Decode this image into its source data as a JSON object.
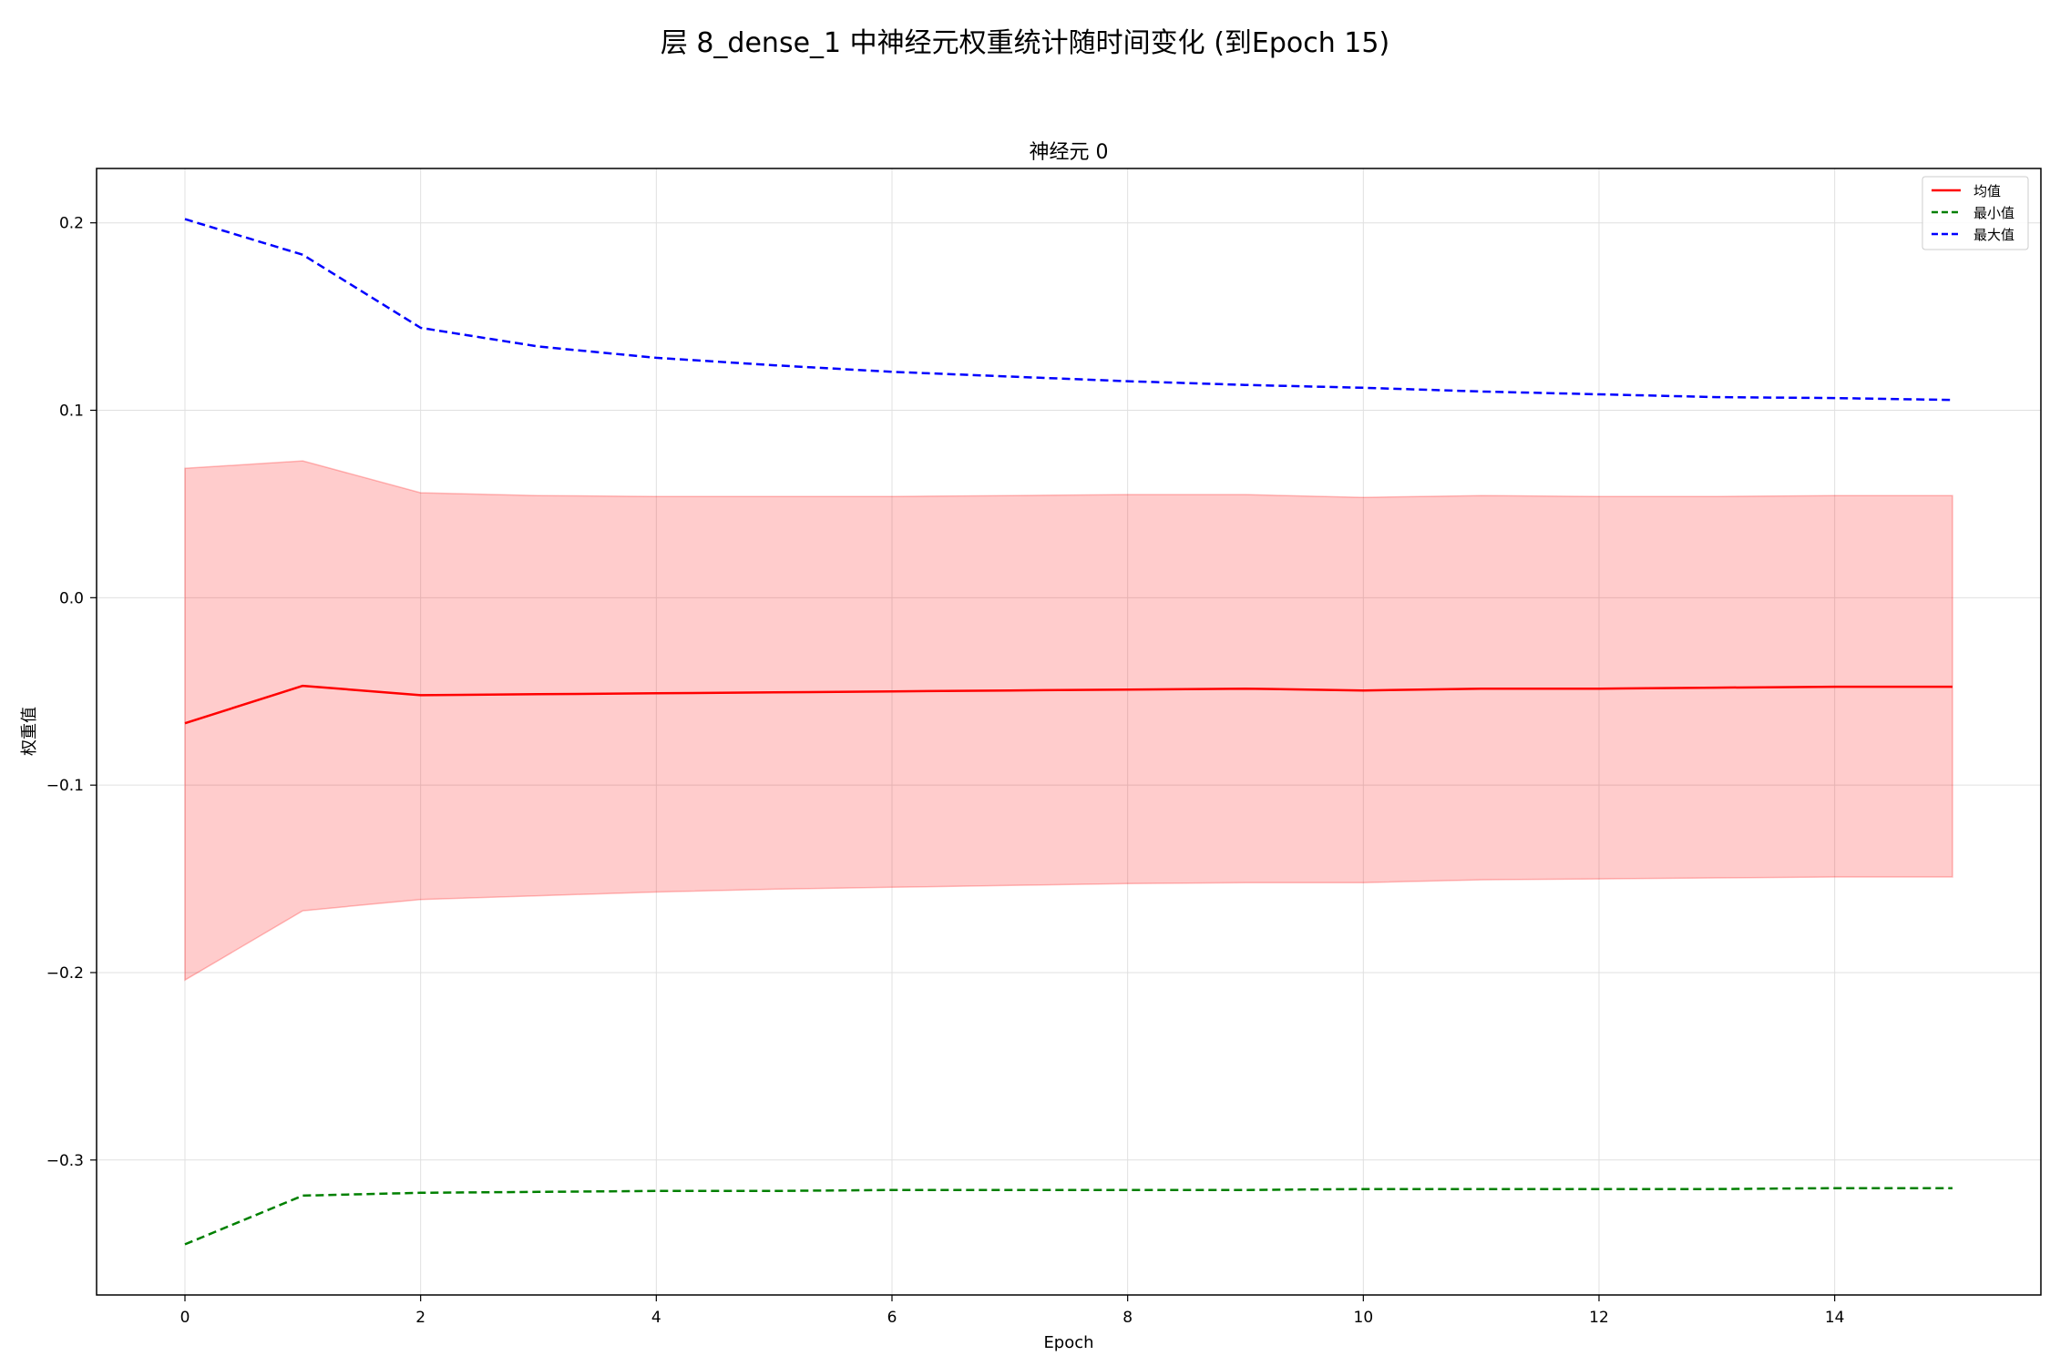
{
  "chart_data": {
    "type": "line",
    "title": "层 8_dense_1 中神经元权重统计随时间变化 (到Epoch 15)",
    "subtitle": "神经元 0",
    "xlabel": "Epoch",
    "ylabel": "权重值",
    "xlim": [
      -0.75,
      15.75
    ],
    "ylim": [
      -0.372,
      0.229
    ],
    "x_ticks": [
      0,
      2,
      4,
      6,
      8,
      10,
      12,
      14
    ],
    "y_ticks": [
      0.2,
      0.1,
      0.0,
      -0.1,
      -0.2,
      -0.3
    ],
    "grid": true,
    "legend_position": "top-right",
    "x": [
      0,
      1,
      2,
      3,
      4,
      5,
      6,
      7,
      8,
      9,
      10,
      11,
      12,
      13,
      14,
      15
    ],
    "series": [
      {
        "name": "均值",
        "color": "#ff0000",
        "style": "solid",
        "values": [
          -0.067,
          -0.047,
          -0.052,
          -0.0515,
          -0.051,
          -0.0505,
          -0.05,
          -0.0495,
          -0.049,
          -0.0485,
          -0.0495,
          -0.0485,
          -0.0485,
          -0.048,
          -0.0475,
          -0.0475
        ]
      },
      {
        "name": "最小值",
        "color": "#008000",
        "style": "dashed",
        "values": [
          -0.345,
          -0.319,
          -0.3175,
          -0.317,
          -0.3165,
          -0.3165,
          -0.316,
          -0.316,
          -0.316,
          -0.316,
          -0.3155,
          -0.3155,
          -0.3155,
          -0.3155,
          -0.315,
          -0.315
        ]
      },
      {
        "name": "最大值",
        "color": "#0000ff",
        "style": "dashed",
        "values": [
          0.202,
          0.183,
          0.144,
          0.134,
          0.128,
          0.124,
          0.1205,
          0.118,
          0.1155,
          0.1135,
          0.112,
          0.11,
          0.1085,
          0.107,
          0.1065,
          0.1055
        ]
      }
    ],
    "band": {
      "color": "#ff0000",
      "opacity": 0.2,
      "upper": [
        0.069,
        0.073,
        0.056,
        0.0545,
        0.054,
        0.054,
        0.054,
        0.0545,
        0.055,
        0.055,
        0.0535,
        0.0545,
        0.054,
        0.054,
        0.0545,
        0.0545
      ],
      "lower": [
        -0.204,
        -0.167,
        -0.161,
        -0.159,
        -0.157,
        -0.1555,
        -0.1545,
        -0.1535,
        -0.1525,
        -0.152,
        -0.152,
        -0.1505,
        -0.15,
        -0.1495,
        -0.149,
        -0.149
      ]
    }
  }
}
